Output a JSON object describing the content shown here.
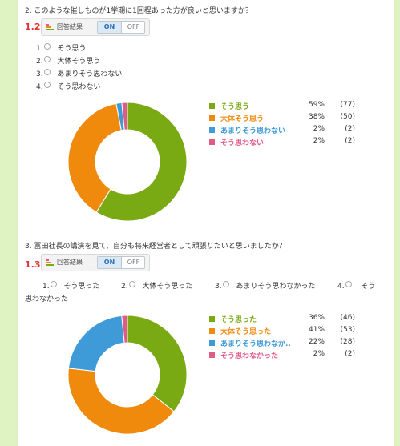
{
  "colors": {
    "green": "#7aaa13",
    "orange": "#f08a0c",
    "blue": "#3f9ad8",
    "pink": "#e25b86"
  },
  "toolbar": {
    "icon": "bar-chart-icon",
    "result_label": "回答結果",
    "on_label": "ON",
    "off_label": "OFF"
  },
  "q2": {
    "title": "2. このような催しものが1学期に1回程あった方が良いと思いますか？",
    "number": "1.2",
    "options": [
      {
        "num": "1.",
        "label": "そう思う"
      },
      {
        "num": "2.",
        "label": "大体そう思う"
      },
      {
        "num": "3.",
        "label": "あまりそう思わない"
      },
      {
        "num": "4.",
        "label": "そう思わない"
      }
    ],
    "legend": [
      {
        "label": "そう思う",
        "percent": "59%",
        "count": "(77)",
        "color": "#7aaa13"
      },
      {
        "label": "大体そう思う",
        "percent": "38%",
        "count": "(50)",
        "color": "#f08a0c"
      },
      {
        "label": "あまりそう思わない",
        "percent": "2%",
        "count": "(2)",
        "color": "#3f9ad8"
      },
      {
        "label": "そう思わない",
        "percent": "2%",
        "count": "(2)",
        "color": "#e25b86"
      }
    ]
  },
  "q3": {
    "title": "3. 冨田社長の講演を見て、自分も将来経営者として頑張りたいと思いましたか？",
    "number": "1.3",
    "options": [
      {
        "num": "1.",
        "label": "そう思った"
      },
      {
        "num": "2.",
        "label": "大体そう思った"
      },
      {
        "num": "3.",
        "label": "あまりそう思わなかった"
      },
      {
        "num": "4.",
        "label": "そう"
      }
    ],
    "options_wrap": "思わなかった",
    "legend": [
      {
        "label": "そう思った",
        "percent": "36%",
        "count": "(46)",
        "color": "#7aaa13"
      },
      {
        "label": "大体そう思った",
        "percent": "41%",
        "count": "(53)",
        "color": "#f08a0c"
      },
      {
        "label": "あまりそう思わなか..",
        "percent": "22%",
        "count": "(28)",
        "color": "#3f9ad8"
      },
      {
        "label": "そう思わなかった",
        "percent": "2%",
        "count": "(2)",
        "color": "#e25b86"
      }
    ]
  },
  "chart_data": [
    {
      "type": "pie",
      "categories": [
        "そう思う",
        "大体そう思う",
        "あまりそう思わない",
        "そう思わない"
      ],
      "values": [
        77,
        50,
        2,
        2
      ],
      "percents": [
        59,
        38,
        2,
        2
      ],
      "style": "donut"
    },
    {
      "type": "pie",
      "categories": [
        "そう思った",
        "大体そう思った",
        "あまりそう思わなか..",
        "そう思わなかった"
      ],
      "values": [
        46,
        53,
        28,
        2
      ],
      "percents": [
        36,
        41,
        22,
        2
      ],
      "style": "donut"
    }
  ]
}
